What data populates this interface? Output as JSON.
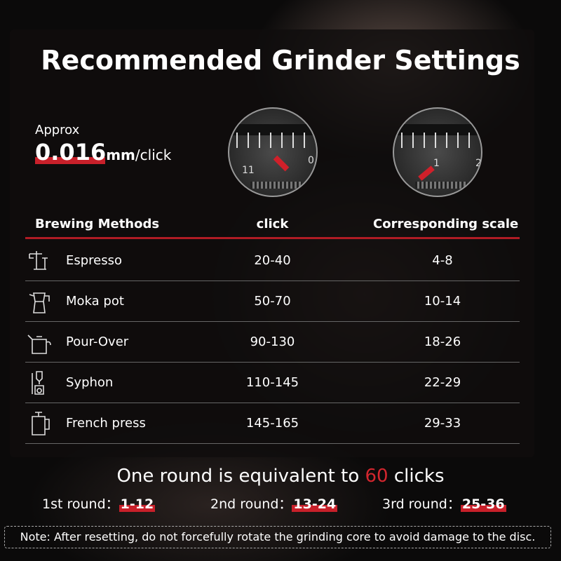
{
  "title": "Recommended Grinder Settings",
  "precision": {
    "prefix": "Approx",
    "value": "0.016",
    "unit": "mm",
    "suffix": "/click"
  },
  "dials": [
    {
      "label": "11",
      "label2": "0"
    },
    {
      "label": "1",
      "label2": "2"
    }
  ],
  "table": {
    "headers": [
      "Brewing Methods",
      "click",
      "Corresponding scale"
    ],
    "rows": [
      {
        "icon": "espresso-machine-icon",
        "method": "Espresso",
        "click": "20-40",
        "scale": "4-8"
      },
      {
        "icon": "moka-pot-icon",
        "method": "Moka pot",
        "click": "50-70",
        "scale": "10-14"
      },
      {
        "icon": "pour-over-kettle-icon",
        "method": "Pour-Over",
        "click": "90-130",
        "scale": "18-26"
      },
      {
        "icon": "syphon-icon",
        "method": "Syphon",
        "click": "110-145",
        "scale": "22-29"
      },
      {
        "icon": "french-press-icon",
        "method": "French press",
        "click": "145-165",
        "scale": "29-33"
      }
    ]
  },
  "round": {
    "prefix": "One round is equivalent to ",
    "number": "60",
    "suffix": " clicks",
    "items": [
      {
        "label": "1st round：",
        "range": "1-12"
      },
      {
        "label": "2nd round：",
        "range": "13-24"
      },
      {
        "label": "3rd round：",
        "range": "25-36"
      }
    ]
  },
  "note": "Note: After resetting, do not forcefully rotate the grinding core to avoid damage to the disc.",
  "colors": {
    "accent": "#c8202a",
    "background": "#0b0a0a"
  }
}
